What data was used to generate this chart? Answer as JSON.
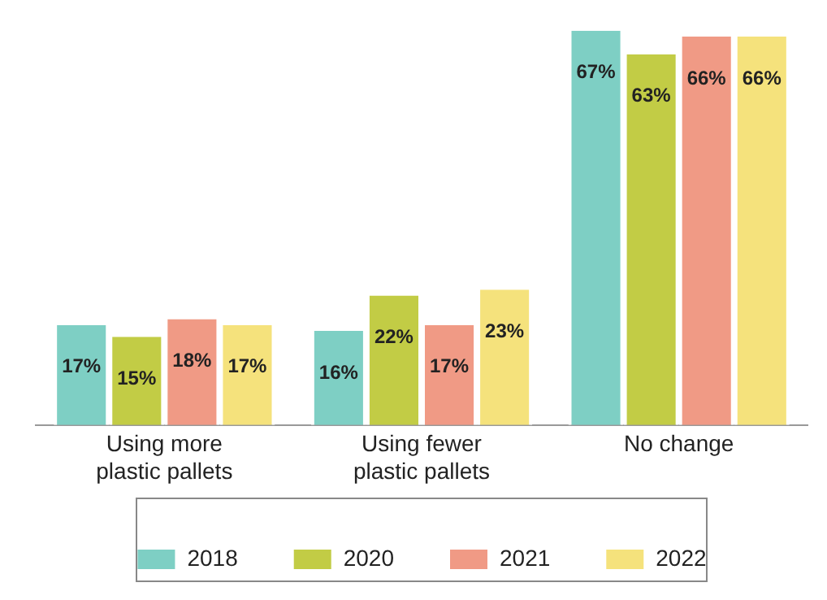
{
  "chart_data": {
    "type": "bar",
    "categories": [
      "Using more plastic pallets",
      "Using fewer plastic pallets",
      "No change"
    ],
    "series": [
      {
        "name": "2018",
        "color": "#7ecfc4",
        "values": [
          17,
          16,
          67
        ],
        "value_labels": [
          "17%",
          "16%",
          "67%"
        ]
      },
      {
        "name": "2020",
        "color": "#c2cc45",
        "values": [
          15,
          22,
          63
        ],
        "value_labels": [
          "15%",
          "22%",
          "63%"
        ]
      },
      {
        "name": "2021",
        "color": "#f09a85",
        "values": [
          18,
          17,
          66
        ],
        "value_labels": [
          "18%",
          "17%",
          "66%"
        ]
      },
      {
        "name": "2022",
        "color": "#f5e27c",
        "values": [
          17,
          23,
          66
        ],
        "value_labels": [
          "17%",
          "23%",
          "66%"
        ]
      }
    ],
    "legend": "bottom",
    "grid": false
  }
}
